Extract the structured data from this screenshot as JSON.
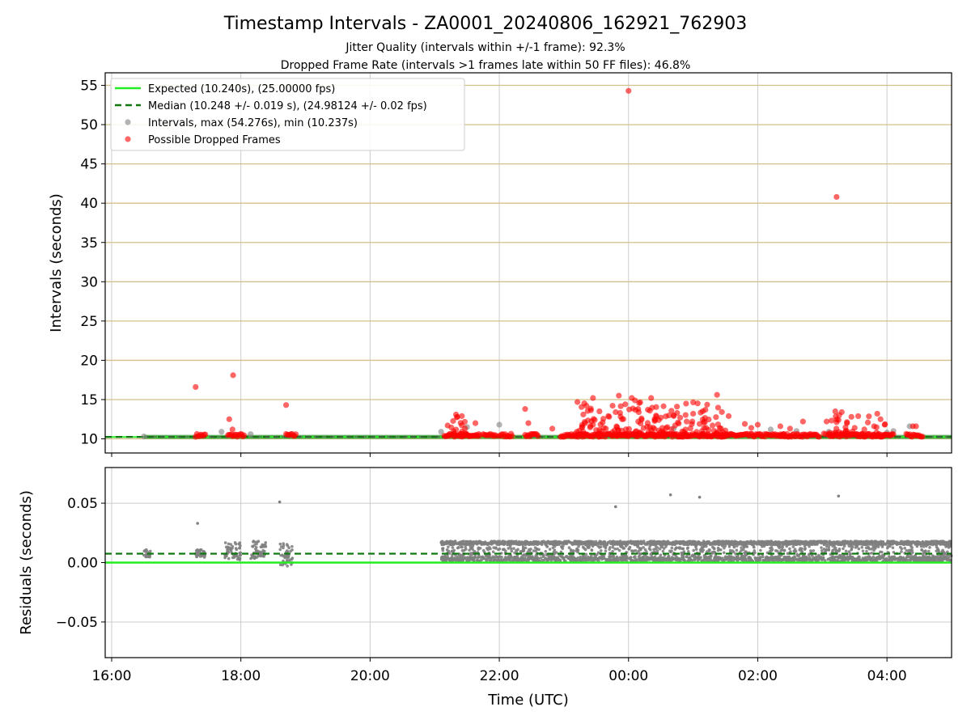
{
  "figure": {
    "title": "Timestamp Intervals - ZA0001_20240806_162921_762903",
    "subtitle_1": "Jitter Quality (intervals within +/-1 frame): 92.3%",
    "subtitle_2": "Dropped Frame Rate (intervals >1 frames late within 50 FF files): 46.8%",
    "xlabel": "Time (UTC)"
  },
  "colors": {
    "expected": "#22ee22",
    "median": "#117711",
    "intervals": "#808080",
    "dropped": "#ff0000",
    "gold_grid": "#d4c08c",
    "grid": "#cccccc"
  },
  "chart_data": [
    {
      "panel": "top",
      "type": "scatter",
      "ylabel": "Intervals (seconds)",
      "x_unit": "hours UTC (24 = 00:00 next day)",
      "xlim": [
        15.9,
        29.0
      ],
      "ylim": [
        8.2,
        56.6
      ],
      "xticks": [
        {
          "value": 16,
          "label": "16:00"
        },
        {
          "value": 18,
          "label": "18:00"
        },
        {
          "value": 20,
          "label": "20:00"
        },
        {
          "value": 22,
          "label": "22:00"
        },
        {
          "value": 24,
          "label": "00:00"
        },
        {
          "value": 26,
          "label": "02:00"
        },
        {
          "value": 28,
          "label": "04:00"
        }
      ],
      "yticks": [
        {
          "value": 10,
          "label": "10"
        },
        {
          "value": 15,
          "label": "15"
        },
        {
          "value": 20,
          "label": "20"
        },
        {
          "value": 25,
          "label": "25"
        },
        {
          "value": 30,
          "label": "30"
        },
        {
          "value": 35,
          "label": "35"
        },
        {
          "value": 40,
          "label": "40"
        },
        {
          "value": 45,
          "label": "45"
        },
        {
          "value": 50,
          "label": "50"
        },
        {
          "value": 55,
          "label": "55"
        }
      ],
      "legend": {
        "placement": "upper-left",
        "items": [
          {
            "label": "Expected (10.240s), (25.00000 fps)",
            "kind": "line",
            "style": "solid"
          },
          {
            "label": "Median (10.248 +/- 0.019 s), (24.98124 +/- 0.02 fps)",
            "kind": "line",
            "style": "dashed"
          },
          {
            "label": "Intervals, max (54.276s), min (10.237s)",
            "kind": "marker",
            "color": "#808080"
          },
          {
            "label": "Possible Dropped Frames",
            "kind": "marker",
            "color": "#ff0000"
          }
        ]
      },
      "expected": 10.24,
      "median": 10.248,
      "band": [
        10.0,
        10.5
      ],
      "intervals_points": [
        {
          "x": 16.5,
          "y": 10.3
        },
        {
          "x": 17.7,
          "y": 10.9
        },
        {
          "x": 18.15,
          "y": 10.6
        },
        {
          "x": 21.5,
          "y": 11.5
        },
        {
          "x": 22.0,
          "y": 11.8
        },
        {
          "x": 21.1,
          "y": 10.9
        },
        {
          "x": 24.55,
          "y": 10.6
        },
        {
          "x": 26.2,
          "y": 11.2
        },
        {
          "x": 26.6,
          "y": 11.0
        },
        {
          "x": 27.1,
          "y": 10.9
        },
        {
          "x": 28.1,
          "y": 11.0
        },
        {
          "x": 28.35,
          "y": 11.6
        },
        {
          "x": 28.0,
          "y": 10.8
        },
        {
          "x": 24.7,
          "y": 11.3
        }
      ],
      "dropped_points": [
        {
          "x": 17.3,
          "y": 16.6
        },
        {
          "x": 17.88,
          "y": 18.1
        },
        {
          "x": 17.82,
          "y": 12.5
        },
        {
          "x": 17.87,
          "y": 11.2
        },
        {
          "x": 18.7,
          "y": 14.3
        },
        {
          "x": 24.0,
          "y": 54.3
        },
        {
          "x": 27.22,
          "y": 40.8
        },
        {
          "x": 21.33,
          "y": 13.1
        },
        {
          "x": 21.35,
          "y": 12.8
        },
        {
          "x": 21.2,
          "y": 11.7
        },
        {
          "x": 21.63,
          "y": 12.0
        },
        {
          "x": 22.4,
          "y": 13.8
        },
        {
          "x": 22.45,
          "y": 12.0
        },
        {
          "x": 22.82,
          "y": 11.3
        },
        {
          "x": 23.3,
          "y": 13.1
        },
        {
          "x": 23.35,
          "y": 14.2
        },
        {
          "x": 23.45,
          "y": 15.2
        },
        {
          "x": 23.55,
          "y": 13.5
        },
        {
          "x": 23.6,
          "y": 12.1
        },
        {
          "x": 23.7,
          "y": 12.8
        },
        {
          "x": 23.8,
          "y": 13.4
        },
        {
          "x": 23.85,
          "y": 15.5
        },
        {
          "x": 23.9,
          "y": 12.5
        },
        {
          "x": 23.95,
          "y": 14.4
        },
        {
          "x": 24.05,
          "y": 15.2
        },
        {
          "x": 24.1,
          "y": 14.9
        },
        {
          "x": 24.15,
          "y": 13.8
        },
        {
          "x": 24.2,
          "y": 12.6
        },
        {
          "x": 24.35,
          "y": 15.2
        },
        {
          "x": 24.5,
          "y": 12.7
        },
        {
          "x": 24.7,
          "y": 13.0
        },
        {
          "x": 24.75,
          "y": 14.1
        },
        {
          "x": 24.9,
          "y": 12.2
        },
        {
          "x": 25.0,
          "y": 13.2
        },
        {
          "x": 25.1,
          "y": 11.9
        },
        {
          "x": 25.37,
          "y": 15.6
        },
        {
          "x": 25.3,
          "y": 11.7
        },
        {
          "x": 25.55,
          "y": 12.9
        },
        {
          "x": 25.8,
          "y": 11.9
        },
        {
          "x": 25.9,
          "y": 11.4
        },
        {
          "x": 26.35,
          "y": 11.6
        },
        {
          "x": 26.5,
          "y": 11.3
        },
        {
          "x": 26.7,
          "y": 12.2
        },
        {
          "x": 27.2,
          "y": 13.5
        },
        {
          "x": 27.3,
          "y": 13.4
        },
        {
          "x": 27.25,
          "y": 12.4
        },
        {
          "x": 27.38,
          "y": 12.0
        },
        {
          "x": 27.45,
          "y": 12.8
        },
        {
          "x": 27.5,
          "y": 11.4
        },
        {
          "x": 27.65,
          "y": 11.2
        },
        {
          "x": 27.8,
          "y": 11.6
        },
        {
          "x": 27.85,
          "y": 13.2
        },
        {
          "x": 27.9,
          "y": 12.5
        },
        {
          "x": 28.4,
          "y": 11.6
        },
        {
          "x": 28.45,
          "y": 11.6
        },
        {
          "x": 23.45,
          "y": 11.8
        },
        {
          "x": 23.65,
          "y": 11.3
        },
        {
          "x": 24.6,
          "y": 11.5
        },
        {
          "x": 25.2,
          "y": 11.4
        },
        {
          "x": 26.0,
          "y": 11.8
        }
      ],
      "dropped_runs": [
        [
          17.3,
          17.45
        ],
        [
          17.8,
          18.05
        ],
        [
          18.7,
          18.85
        ],
        [
          21.15,
          21.7
        ],
        [
          21.75,
          21.95
        ],
        [
          22.0,
          22.2
        ],
        [
          22.4,
          22.6
        ],
        [
          22.95,
          25.5
        ],
        [
          25.5,
          26.4
        ],
        [
          26.35,
          26.95
        ],
        [
          27.1,
          28.1
        ],
        [
          28.3,
          28.55
        ]
      ]
    },
    {
      "panel": "bottom",
      "type": "scatter",
      "ylabel": "Residuals (seconds)",
      "x_unit": "hours UTC (24 = 00:00 next day)",
      "xlim": [
        15.9,
        29.0
      ],
      "ylim": [
        -0.08,
        0.08
      ],
      "xticks": [
        {
          "value": 16,
          "label": "16:00"
        },
        {
          "value": 18,
          "label": "18:00"
        },
        {
          "value": 20,
          "label": "20:00"
        },
        {
          "value": 22,
          "label": "22:00"
        },
        {
          "value": 24,
          "label": "00:00"
        },
        {
          "value": 26,
          "label": "02:00"
        },
        {
          "value": 28,
          "label": "04:00"
        }
      ],
      "yticks": [
        {
          "value": 0.05,
          "label": "0.05"
        },
        {
          "value": 0.0,
          "label": "0.00"
        },
        {
          "value": -0.05,
          "label": "−0.05"
        }
      ],
      "expected_residual": 0.0,
      "median_residual": 0.0075,
      "outliers": [
        {
          "x": 17.33,
          "y": 0.033
        },
        {
          "x": 18.6,
          "y": 0.051
        },
        {
          "x": 23.8,
          "y": 0.047
        },
        {
          "x": 24.65,
          "y": 0.057
        },
        {
          "x": 25.1,
          "y": 0.055
        },
        {
          "x": 27.25,
          "y": 0.056
        }
      ],
      "clusters": [
        {
          "x0": 16.5,
          "x1": 16.6,
          "lo": 0.004,
          "hi": 0.011
        },
        {
          "x0": 17.3,
          "x1": 17.45,
          "lo": 0.004,
          "hi": 0.011
        },
        {
          "x0": 17.75,
          "x1": 18.0,
          "lo": 0.002,
          "hi": 0.017
        },
        {
          "x0": 18.15,
          "x1": 18.4,
          "lo": 0.003,
          "hi": 0.018
        },
        {
          "x0": 18.6,
          "x1": 18.8,
          "lo": -0.003,
          "hi": 0.016
        },
        {
          "x0": 21.1,
          "x1": 29.0,
          "lo": 0.0,
          "hi": 0.018
        }
      ]
    }
  ]
}
